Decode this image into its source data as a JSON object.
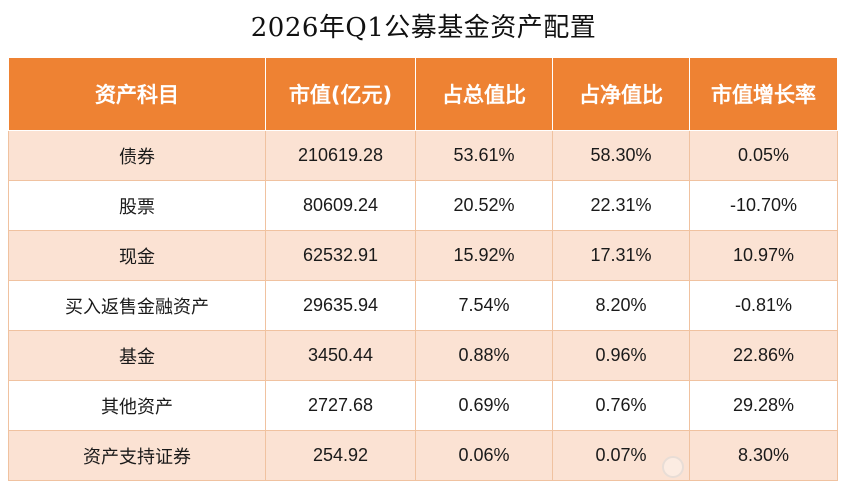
{
  "title": "2026年Q1公募基金资产配置",
  "table": {
    "headers": [
      "资产科目",
      "市值(亿元)",
      "占总值比",
      "占净值比",
      "市值增长率"
    ],
    "rows": [
      [
        "债券",
        "210619.28",
        "53.61%",
        "58.30%",
        "0.05%"
      ],
      [
        "股票",
        "80609.24",
        "20.52%",
        "22.31%",
        "-10.70%"
      ],
      [
        "现金",
        "62532.91",
        "15.92%",
        "17.31%",
        "10.97%"
      ],
      [
        "买入返售金融资产",
        "29635.94",
        "7.54%",
        "8.20%",
        "-0.81%"
      ],
      [
        "基金",
        "3450.44",
        "0.88%",
        "0.96%",
        "22.86%"
      ],
      [
        "其他资产",
        "2727.68",
        "0.69%",
        "0.76%",
        "29.28%"
      ],
      [
        "资产支持证券",
        "254.92",
        "0.06%",
        "0.07%",
        "8.30%"
      ]
    ]
  },
  "colors": {
    "header_bg": "#ee8233",
    "header_text": "#ffffff",
    "row_alt_bg": "#fbe2d3",
    "row_bg": "#ffffff"
  },
  "watermark": {
    "logo_icon": "weibo-logo-icon"
  }
}
